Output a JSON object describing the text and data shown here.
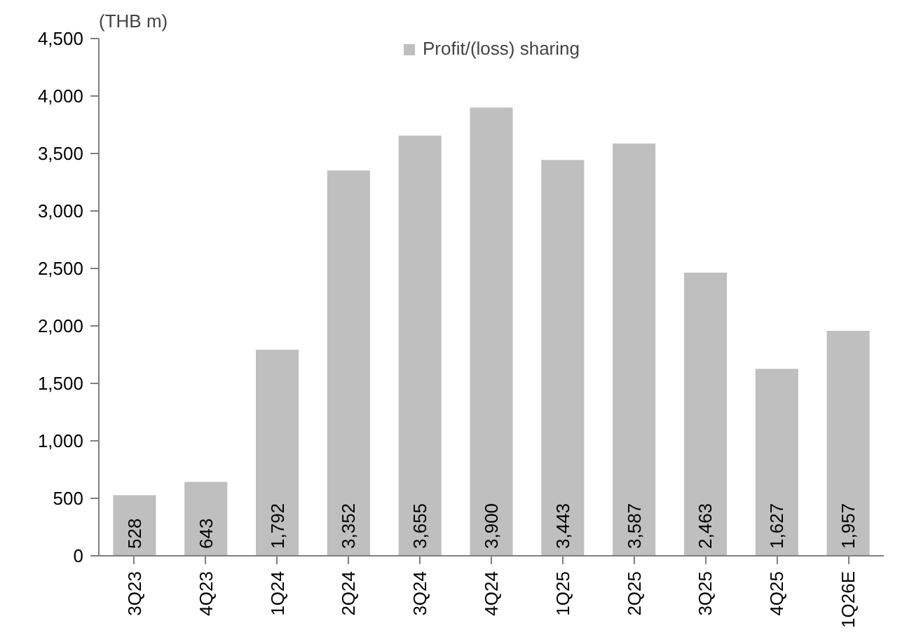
{
  "chart_data": {
    "type": "bar",
    "ylabel": "(THB m)",
    "categories": [
      "3Q23",
      "4Q23",
      "1Q24",
      "2Q24",
      "3Q24",
      "4Q24",
      "1Q25",
      "2Q25",
      "3Q25",
      "4Q25",
      "1Q26E"
    ],
    "series": [
      {
        "name": "Profit/(loss) sharing",
        "color": "#bfbfbf",
        "values": [
          528,
          643,
          1792,
          3352,
          3655,
          3900,
          3443,
          3587,
          2463,
          1627,
          1957
        ],
        "value_labels": [
          "528",
          "643",
          "1,792",
          "3,352",
          "3,655",
          "3,900",
          "3,443",
          "3,587",
          "2,463",
          "1,627",
          "1,957"
        ]
      }
    ],
    "ylim": [
      0,
      4500
    ],
    "yticks": [
      {
        "value": 0,
        "label": "0"
      },
      {
        "value": 500,
        "label": "500"
      },
      {
        "value": 1000,
        "label": "1,000"
      },
      {
        "value": 1500,
        "label": "1,500"
      },
      {
        "value": 2000,
        "label": "2,000"
      },
      {
        "value": 2500,
        "label": "2,500"
      },
      {
        "value": 3000,
        "label": "3,000"
      },
      {
        "value": 3500,
        "label": "3,500"
      },
      {
        "value": 4000,
        "label": "4,000"
      },
      {
        "value": 4500,
        "label": "4,500"
      }
    ],
    "legend": "top",
    "grid": false
  }
}
